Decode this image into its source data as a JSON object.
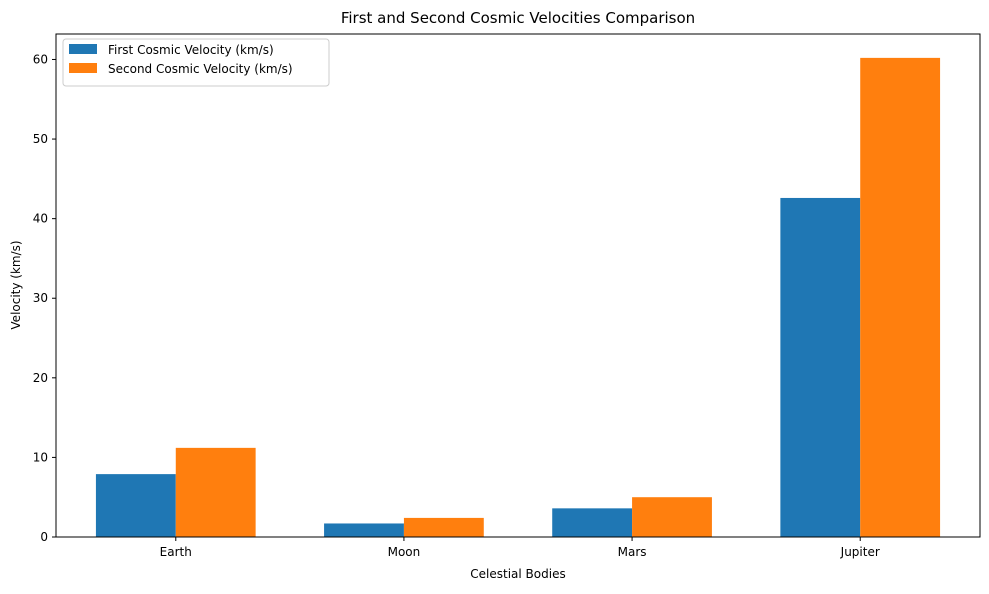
{
  "chart_data": {
    "type": "bar",
    "title": "First and Second Cosmic Velocities Comparison",
    "xlabel": "Celestial Bodies",
    "ylabel": "Velocity (km/s)",
    "categories": [
      "Earth",
      "Moon",
      "Mars",
      "Jupiter"
    ],
    "series": [
      {
        "name": "First Cosmic Velocity (km/s)",
        "values": [
          7.9,
          1.7,
          3.6,
          42.6
        ],
        "color": "#1f77b4"
      },
      {
        "name": "Second Cosmic Velocity (km/s)",
        "values": [
          11.2,
          2.4,
          5.0,
          60.2
        ],
        "color": "#ff7f0e"
      }
    ],
    "ylim": [
      0,
      63.2
    ],
    "yticks": [
      0,
      10,
      20,
      30,
      40,
      50,
      60
    ],
    "grid": false,
    "legend": "top-left"
  }
}
